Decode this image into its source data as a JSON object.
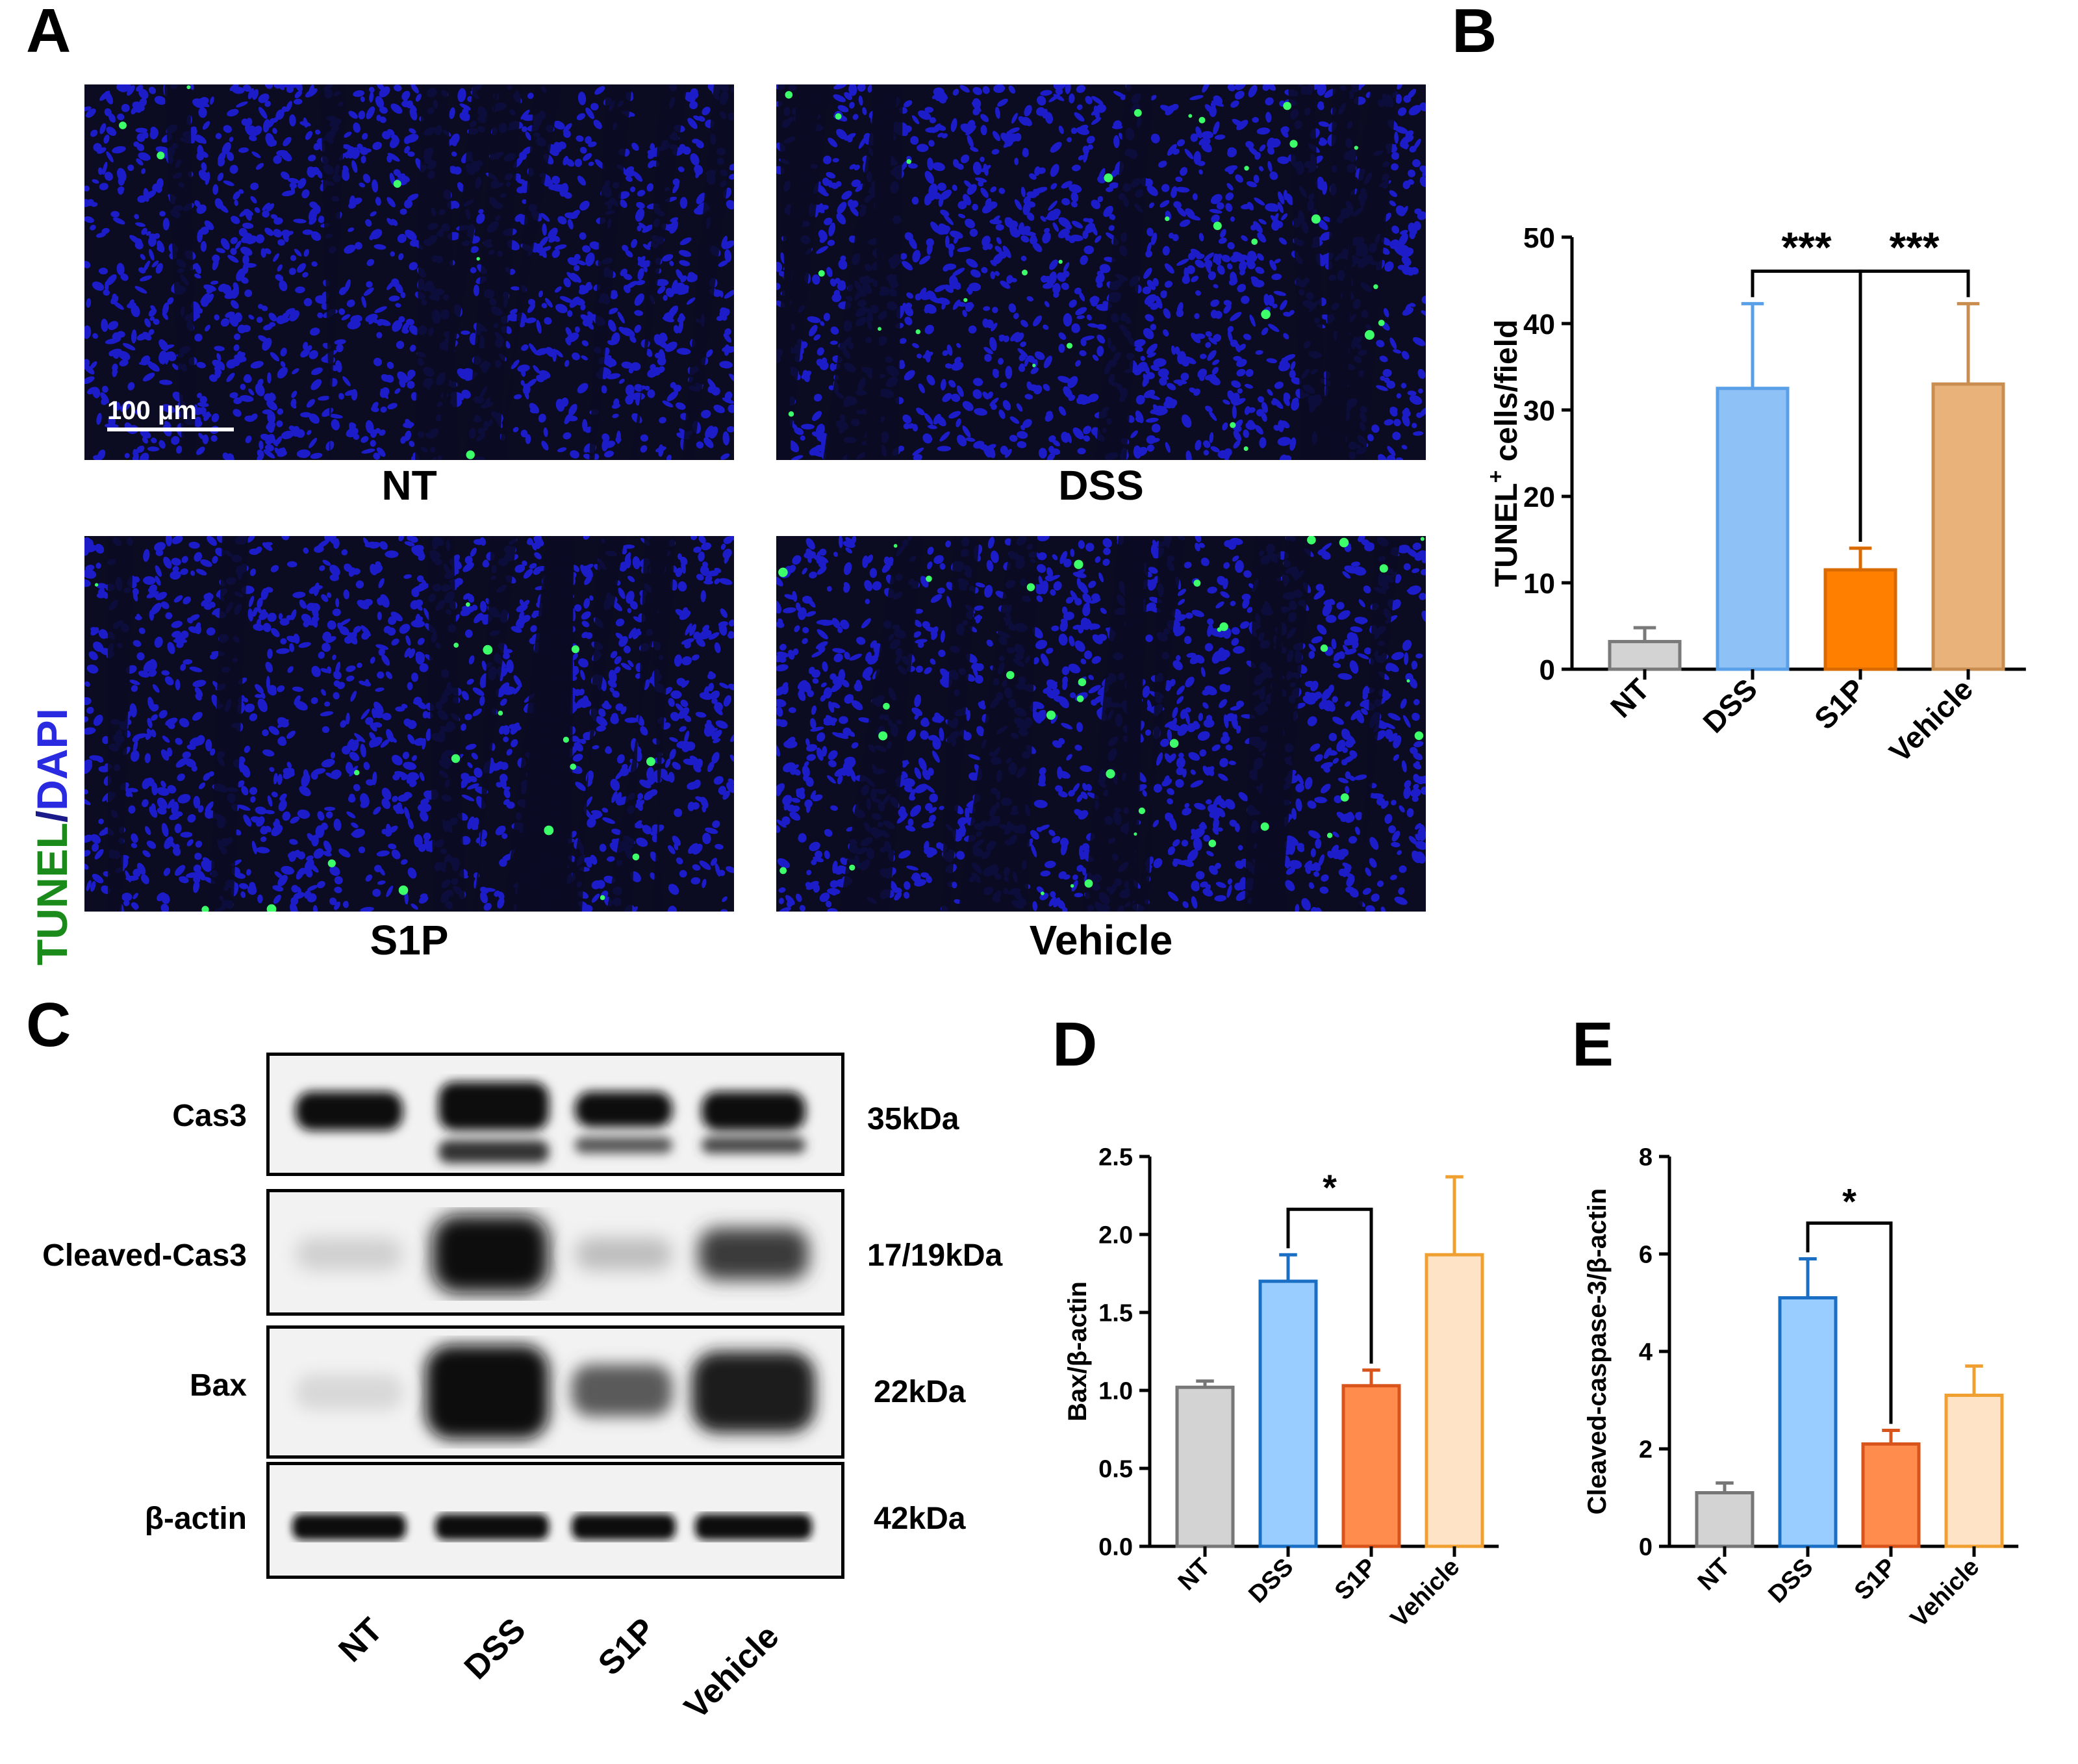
{
  "panels": {
    "A": "A",
    "B": "B",
    "C": "C",
    "D": "D",
    "E": "E"
  },
  "microscopy": {
    "stain_tunel": "TUNEL",
    "stain_sep": "/",
    "stain_dapi": "DAPI",
    "scale_bar": "100 μm",
    "images": [
      {
        "label": "NT"
      },
      {
        "label": "DSS"
      },
      {
        "label": "S1P"
      },
      {
        "label": "Vehicle"
      }
    ]
  },
  "western_blot": {
    "rows": [
      {
        "protein": "Cas3",
        "kda": "35kDa"
      },
      {
        "protein": "Cleaved-Cas3",
        "kda": "17/19kDa"
      },
      {
        "protein": "Bax",
        "kda": "22kDa"
      },
      {
        "protein": "β-actin",
        "kda": "42kDa"
      }
    ],
    "lanes": [
      "NT",
      "DSS",
      "S1P",
      "Vehicle"
    ]
  },
  "chart_data": [
    {
      "id": "B",
      "type": "bar",
      "categories": [
        "NT",
        "DSS",
        "S1P",
        "Vehicle"
      ],
      "values": [
        3.2,
        32.5,
        11.5,
        33.0
      ],
      "errors": [
        1.6,
        9.8,
        2.5,
        9.3
      ],
      "colors": [
        "#d3d3d3",
        "#8ec1f5",
        "#ff8000",
        "#e8b27a"
      ],
      "edge_colors": [
        "#7a7a7a",
        "#5aa0e8",
        "#d96a00",
        "#c98e4f"
      ],
      "ylabel_main": "TUNEL",
      "ylabel_sup": "+",
      "ylabel_rest": " cells/field",
      "ylim": [
        0,
        50
      ],
      "yticks": [
        0,
        10,
        20,
        30,
        40,
        50
      ],
      "significance": [
        {
          "from": 1,
          "to": 2,
          "label": "***"
        },
        {
          "from": 2,
          "to": 3,
          "label": "***"
        }
      ]
    },
    {
      "id": "D",
      "type": "bar",
      "categories": [
        "NT",
        "DSS",
        "S1P",
        "Vehicle"
      ],
      "values": [
        1.02,
        1.7,
        1.03,
        1.87
      ],
      "errors": [
        0.04,
        0.17,
        0.1,
        0.5
      ],
      "colors": [
        "#d3d3d3",
        "#99ccff",
        "#ff8c4d",
        "#ffe3c7"
      ],
      "edge_colors": [
        "#777777",
        "#1a6fc4",
        "#d9541a",
        "#f0a030"
      ],
      "ylabel": "Bax/β-actin",
      "ylim": [
        0,
        2.5
      ],
      "yticks": [
        "0.0",
        "0.5",
        "1.0",
        "1.5",
        "2.0",
        "2.5"
      ],
      "significance": [
        {
          "from": 1,
          "to": 2,
          "label": "*"
        }
      ]
    },
    {
      "id": "E",
      "type": "bar",
      "categories": [
        "NT",
        "DSS",
        "S1P",
        "Vehicle"
      ],
      "values": [
        1.1,
        5.1,
        2.1,
        3.1
      ],
      "errors": [
        0.2,
        0.8,
        0.28,
        0.6
      ],
      "colors": [
        "#d3d3d3",
        "#99ccff",
        "#ff8c4d",
        "#ffe3c7"
      ],
      "edge_colors": [
        "#777777",
        "#1a6fc4",
        "#d9541a",
        "#f0a030"
      ],
      "ylabel": "Cleaved-caspase-3/β-actin",
      "ylim": [
        0,
        8
      ],
      "yticks": [
        "0",
        "2",
        "4",
        "6",
        "8"
      ],
      "significance": [
        {
          "from": 1,
          "to": 2,
          "label": "*"
        }
      ]
    }
  ]
}
